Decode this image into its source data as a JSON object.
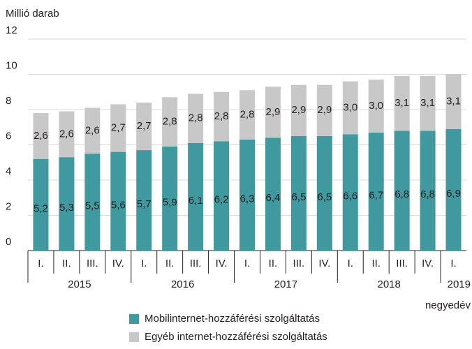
{
  "chart_data": {
    "type": "stacked_bar",
    "y_axis_label": "Millió darab",
    "x_axis_label": "negyedév",
    "groups": [
      {
        "label": "2015",
        "categories": [
          "I.",
          "II.",
          "III.",
          "IV."
        ]
      },
      {
        "label": "2016",
        "categories": [
          "I.",
          "II.",
          "III.",
          "IV."
        ]
      },
      {
        "label": "2017",
        "categories": [
          "I.",
          "II.",
          "III.",
          "IV."
        ]
      },
      {
        "label": "2018",
        "categories": [
          "I.",
          "II.",
          "III.",
          "IV."
        ]
      },
      {
        "label": "2019",
        "categories": [
          "I."
        ]
      }
    ],
    "series": [
      {
        "name": "Mobilinternet-hozzáférési szolgáltatás",
        "color": "#3f999f",
        "values": [
          5.2,
          5.3,
          5.5,
          5.6,
          5.7,
          5.9,
          6.1,
          6.2,
          6.3,
          6.4,
          6.5,
          6.5,
          6.6,
          6.7,
          6.8,
          6.8,
          6.9
        ],
        "value_labels": [
          "5,2",
          "5,3",
          "5,5",
          "5,6",
          "5,7",
          "5,9",
          "6,1",
          "6,2",
          "6,3",
          "6,4",
          "6,5",
          "6,5",
          "6,6",
          "6,7",
          "6,8",
          "6,8",
          "6,9"
        ]
      },
      {
        "name": "Egyéb internet-hozzáférési szolgáltatás",
        "color": "#c8c8c9",
        "values": [
          2.6,
          2.6,
          2.6,
          2.7,
          2.7,
          2.8,
          2.8,
          2.8,
          2.8,
          2.9,
          2.9,
          2.9,
          3.0,
          3.0,
          3.1,
          3.1,
          3.1
        ],
        "value_labels": [
          "2,6",
          "2,6",
          "2,6",
          "2,7",
          "2,7",
          "2,8",
          "2,8",
          "2,8",
          "2,8",
          "2,9",
          "2,9",
          "2,9",
          "3,0",
          "3,0",
          "3,1",
          "3,1",
          "3,1"
        ]
      }
    ],
    "ylim": [
      0,
      12
    ],
    "yticks": [
      0,
      2,
      4,
      6,
      8,
      10,
      12
    ],
    "grid": true
  }
}
